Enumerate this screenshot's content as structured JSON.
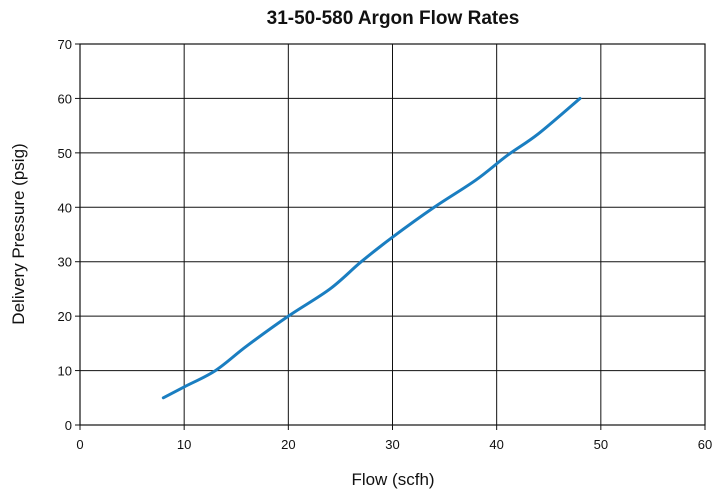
{
  "chart_data": {
    "type": "line",
    "title": "31-50-580 Argon Flow Rates",
    "xlabel": "Flow (scfh)",
    "ylabel": "Delivery Pressure (psig)",
    "xlim": [
      0,
      60
    ],
    "ylim": [
      0,
      70
    ],
    "xticks": [
      0,
      10,
      20,
      30,
      40,
      50,
      60
    ],
    "yticks": [
      0,
      10,
      20,
      30,
      40,
      50,
      60,
      70
    ],
    "grid": true,
    "line_color": "#1a7ec1",
    "series": [
      {
        "x": [
          8,
          10,
          13,
          16,
          20,
          24,
          27,
          30,
          34,
          38,
          41,
          44,
          48
        ],
        "y": [
          5,
          7,
          10,
          14.5,
          20,
          25,
          30,
          34.5,
          40,
          45,
          49.5,
          53.5,
          60
        ]
      }
    ]
  }
}
